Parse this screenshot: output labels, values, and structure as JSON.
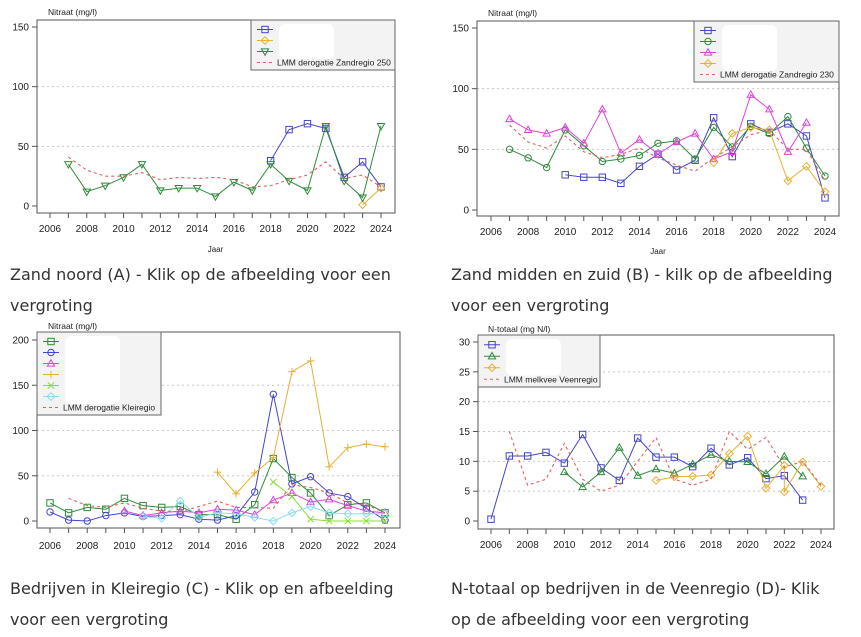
{
  "captions": {
    "a": [
      "Zand noord (A) - Klik op de afbeelding voor een",
      "vergroting"
    ],
    "b": [
      "Zand midden en zuid (B) - kilk op de afbeelding",
      "voor een vergroting"
    ],
    "c": [
      "Bedrijven in Kleiregio (C) - Klik op en afbeelding",
      "voor een vergroting"
    ],
    "d": [
      "N-totaal op bedrijven in de Veenregio (D)- Klik",
      "op de afbeelding voor een vergroting"
    ]
  },
  "chart_data": [
    {
      "id": "a",
      "type": "line",
      "title": "",
      "ylabel": "Nitraat (mg/l)",
      "xlabel": "Jaar",
      "xlim": [
        2006,
        2024
      ],
      "ylim": [
        0,
        150
      ],
      "xticks": [
        2006,
        2008,
        2010,
        2012,
        2014,
        2016,
        2018,
        2020,
        2022,
        2024
      ],
      "yticks": [
        0,
        50,
        100,
        150
      ],
      "gridlines_y": [
        50,
        100
      ],
      "legend_position": "top-right",
      "series": [
        {
          "name": "",
          "color": "#4444cc",
          "marker": "square",
          "style": "solid",
          "x": [
            2018,
            2019,
            2020,
            2021,
            2022,
            2023,
            2024
          ],
          "y": [
            38,
            64,
            69,
            65,
            24,
            37,
            16
          ]
        },
        {
          "name": "",
          "color": "#e8b030",
          "marker": "diamond",
          "style": "solid",
          "x": [
            2023,
            2024
          ],
          "y": [
            1,
            15
          ]
        },
        {
          "name": "",
          "color": "#2e8b3a",
          "marker": "triangle-down",
          "style": "solid",
          "x": [
            2007,
            2008,
            2009,
            2010,
            2011,
            2012,
            2013,
            2014,
            2015,
            2016,
            2017,
            2018,
            2019,
            2020,
            2021,
            2022,
            2023,
            2024
          ],
          "y": [
            35,
            12,
            17,
            24,
            35,
            13,
            15,
            15,
            8,
            20,
            13,
            35,
            21,
            13,
            67,
            21,
            7,
            67
          ]
        },
        {
          "name": "LMM derogatie Zandregio 250",
          "color": "#e06060",
          "marker": "none",
          "style": "dotted",
          "x": [
            2007,
            2008,
            2009,
            2010,
            2011,
            2012,
            2013,
            2014,
            2015,
            2016,
            2017,
            2018,
            2019,
            2020,
            2021,
            2022,
            2023,
            2024
          ],
          "y": [
            41,
            30,
            25,
            25,
            28,
            22,
            24,
            23,
            24,
            22,
            16,
            17,
            22,
            26,
            37,
            23,
            26,
            16
          ]
        }
      ]
    },
    {
      "id": "b",
      "type": "line",
      "title": "",
      "ylabel": "Nitraat (mg/l)",
      "xlabel": "Jaar",
      "xlim": [
        2006,
        2024
      ],
      "ylim": [
        0,
        150
      ],
      "xticks": [
        2006,
        2008,
        2010,
        2012,
        2014,
        2016,
        2018,
        2020,
        2022,
        2024
      ],
      "yticks": [
        0,
        50,
        100,
        150
      ],
      "gridlines_y": [
        50,
        100
      ],
      "legend_position": "top-right",
      "series": [
        {
          "name": "",
          "color": "#4444cc",
          "marker": "square",
          "style": "solid",
          "x": [
            2010,
            2011,
            2012,
            2013,
            2014,
            2015,
            2016,
            2017,
            2018,
            2019,
            2020,
            2021,
            2022,
            2023,
            2024
          ],
          "y": [
            29,
            27,
            27,
            22,
            36,
            46,
            33,
            41,
            76,
            44,
            71,
            64,
            71,
            61,
            10
          ]
        },
        {
          "name": "",
          "color": "#2e8b3a",
          "marker": "circle",
          "style": "solid",
          "x": [
            2007,
            2008,
            2009,
            2010,
            2011,
            2012,
            2013,
            2014,
            2015,
            2016,
            2017,
            2018,
            2019,
            2020,
            2021,
            2022,
            2023,
            2024
          ],
          "y": [
            50,
            43,
            35,
            66,
            53,
            40,
            42,
            45,
            55,
            57,
            42,
            68,
            52,
            69,
            63,
            77,
            51,
            28
          ]
        },
        {
          "name": "",
          "color": "#dd44dd",
          "marker": "triangle",
          "style": "solid",
          "x": [
            2007,
            2008,
            2009,
            2010,
            2011,
            2012,
            2013,
            2014,
            2015,
            2016,
            2017,
            2018,
            2019,
            2020,
            2021,
            2022,
            2023
          ],
          "y": [
            75,
            66,
            63,
            68,
            55,
            83,
            47,
            58,
            46,
            56,
            63,
            42,
            48,
            95,
            83,
            48,
            72
          ]
        },
        {
          "name": "",
          "color": "#e8b030",
          "marker": "diamond",
          "style": "solid",
          "x": [
            2018,
            2019,
            2020,
            2021,
            2022,
            2023,
            2024
          ],
          "y": [
            39,
            63,
            68,
            66,
            24,
            36,
            15
          ]
        },
        {
          "name": "LMM derogatie Zandregio 230",
          "color": "#e06060",
          "marker": "none",
          "style": "dotted",
          "x": [
            2007,
            2008,
            2009,
            2010,
            2011,
            2012,
            2013,
            2014,
            2015,
            2016,
            2017,
            2018,
            2019,
            2020,
            2021,
            2022,
            2023,
            2024
          ],
          "y": [
            70,
            56,
            51,
            61,
            48,
            43,
            46,
            51,
            43,
            37,
            32,
            43,
            52,
            62,
            66,
            50,
            50,
            24
          ]
        }
      ]
    },
    {
      "id": "c",
      "type": "line",
      "title": "",
      "ylabel": "Nitraat (mg/l)",
      "xlabel": "",
      "xlim": [
        2006,
        2024
      ],
      "ylim": [
        0,
        200
      ],
      "xticks": [
        2006,
        2008,
        2010,
        2012,
        2014,
        2016,
        2018,
        2020,
        2022,
        2024
      ],
      "yticks": [
        0,
        50,
        100,
        150,
        200
      ],
      "gridlines_y": [
        50,
        100,
        150
      ],
      "legend_position": "top-left",
      "series": [
        {
          "name": "",
          "color": "#2e8b3a",
          "marker": "square",
          "style": "solid",
          "x": [
            2006,
            2007,
            2008,
            2009,
            2010,
            2011,
            2012,
            2013,
            2014,
            2015,
            2016,
            2017,
            2018,
            2019,
            2020,
            2021,
            2022,
            2023,
            2024
          ],
          "y": [
            20,
            9,
            15,
            13,
            25,
            17,
            15,
            16,
            7,
            7,
            2,
            18,
            69,
            48,
            31,
            6,
            18,
            20,
            9
          ]
        },
        {
          "name": "",
          "color": "#4444cc",
          "marker": "circle",
          "style": "solid",
          "x": [
            2006,
            2007,
            2008,
            2009,
            2010,
            2011,
            2012,
            2013,
            2014,
            2015,
            2016,
            2017,
            2018,
            2019,
            2020,
            2021,
            2022,
            2023,
            2024
          ],
          "y": [
            10,
            1,
            0,
            6,
            9,
            5,
            6,
            7,
            2,
            1,
            6,
            32,
            140,
            41,
            49,
            31,
            27,
            14,
            1
          ]
        },
        {
          "name": "",
          "color": "#dd44dd",
          "marker": "triangle",
          "style": "solid",
          "x": [
            2010,
            2011,
            2012,
            2013,
            2014,
            2015,
            2016,
            2017,
            2018,
            2019,
            2020,
            2021,
            2022,
            2023,
            2024
          ],
          "y": [
            11,
            6,
            9,
            11,
            9,
            13,
            12,
            7,
            23,
            31,
            21,
            24,
            17,
            11,
            9
          ]
        },
        {
          "name": "",
          "color": "#e8b030",
          "marker": "plus",
          "style": "solid",
          "x": [
            2015,
            2016,
            2017,
            2018,
            2019,
            2020,
            2021,
            2022,
            2023,
            2024
          ],
          "y": [
            54,
            30,
            53,
            70,
            165,
            177,
            60,
            81,
            85,
            82
          ]
        },
        {
          "name": "",
          "color": "#88dd33",
          "marker": "cross",
          "style": "solid",
          "x": [
            2018,
            2019,
            2020,
            2021,
            2022,
            2023,
            2024
          ],
          "y": [
            43,
            27,
            2,
            0,
            0,
            0,
            0
          ]
        },
        {
          "name": "",
          "color": "#88ddee",
          "marker": "diamond",
          "style": "solid",
          "x": [
            2011,
            2012,
            2013,
            2014,
            2015,
            2016,
            2017,
            2018,
            2019,
            2020,
            2021,
            2022,
            2023,
            2024
          ],
          "y": [
            5,
            3,
            22,
            4,
            9,
            8,
            4,
            0,
            9,
            16,
            9,
            8,
            8,
            8
          ]
        },
        {
          "name": "LMM derogatie Kleiregio",
          "color": "#e06060",
          "marker": "none",
          "style": "dotted",
          "x": [
            2007,
            2008,
            2009,
            2010,
            2011,
            2012,
            2013,
            2014,
            2015,
            2016,
            2017,
            2018,
            2019,
            2020,
            2021,
            2022,
            2023,
            2024
          ],
          "y": [
            25,
            17,
            15,
            20,
            14,
            11,
            10,
            16,
            22,
            15,
            15,
            14,
            40,
            37,
            31,
            20,
            18,
            9
          ]
        }
      ]
    },
    {
      "id": "d",
      "type": "line",
      "title": "",
      "ylabel": "N-totaal (mg N/l)",
      "xlabel": "",
      "xlim": [
        2006,
        2024
      ],
      "ylim": [
        0,
        30
      ],
      "xticks": [
        2006,
        2008,
        2010,
        2012,
        2014,
        2016,
        2018,
        2020,
        2022,
        2024
      ],
      "yticks": [
        0,
        5,
        10,
        15,
        20,
        25,
        30
      ],
      "gridlines_y": [
        5,
        10,
        15,
        20,
        25
      ],
      "legend_position": "top-left",
      "series": [
        {
          "name": "",
          "color": "#4444cc",
          "marker": "square",
          "style": "solid",
          "x": [
            2006,
            2007,
            2008,
            2009,
            2010,
            2011,
            2012,
            2013,
            2014,
            2015,
            2016,
            2017,
            2018,
            2019,
            2020,
            2021,
            2022,
            2023
          ],
          "y": [
            0.3,
            10.9,
            10.9,
            11.5,
            9.7,
            14.5,
            8.9,
            6.8,
            13.9,
            10.7,
            10.7,
            9.1,
            12.2,
            9.4,
            10.6,
            7.1,
            7.6,
            3.5
          ]
        },
        {
          "name": "",
          "color": "#2e8b3a",
          "marker": "triangle",
          "style": "solid",
          "x": [
            2010,
            2011,
            2012,
            2013,
            2014,
            2015,
            2016,
            2017,
            2018,
            2019,
            2020,
            2021,
            2022,
            2023
          ],
          "y": [
            8.2,
            5.7,
            8.2,
            12.3,
            7.6,
            8.7,
            8.0,
            9.5,
            11.1,
            10.0,
            9.9,
            7.9,
            10.8,
            7.5
          ]
        },
        {
          "name": "",
          "color": "#e8b030",
          "marker": "diamond",
          "style": "solid",
          "x": [
            2015,
            2016,
            2017,
            2018,
            2019,
            2020,
            2021,
            2022,
            2022,
            2023,
            2024
          ],
          "y": [
            6.8,
            7.4,
            7.5,
            7.7,
            11.3,
            14.2,
            5.5,
            9.3,
            4.9,
            9.9,
            5.8
          ]
        },
        {
          "name": "LMM melkvee Veenregio",
          "color": "#e06060",
          "marker": "none",
          "style": "dotted",
          "x": [
            2007,
            2008,
            2009,
            2010,
            2011,
            2012,
            2013,
            2014,
            2015,
            2016,
            2017,
            2018,
            2019,
            2020,
            2021,
            2022,
            2023,
            2024
          ],
          "y": [
            15,
            6,
            7,
            13,
            7,
            5,
            6,
            10,
            14,
            7,
            6,
            7,
            15,
            12,
            14,
            9,
            10,
            6
          ]
        }
      ]
    }
  ]
}
